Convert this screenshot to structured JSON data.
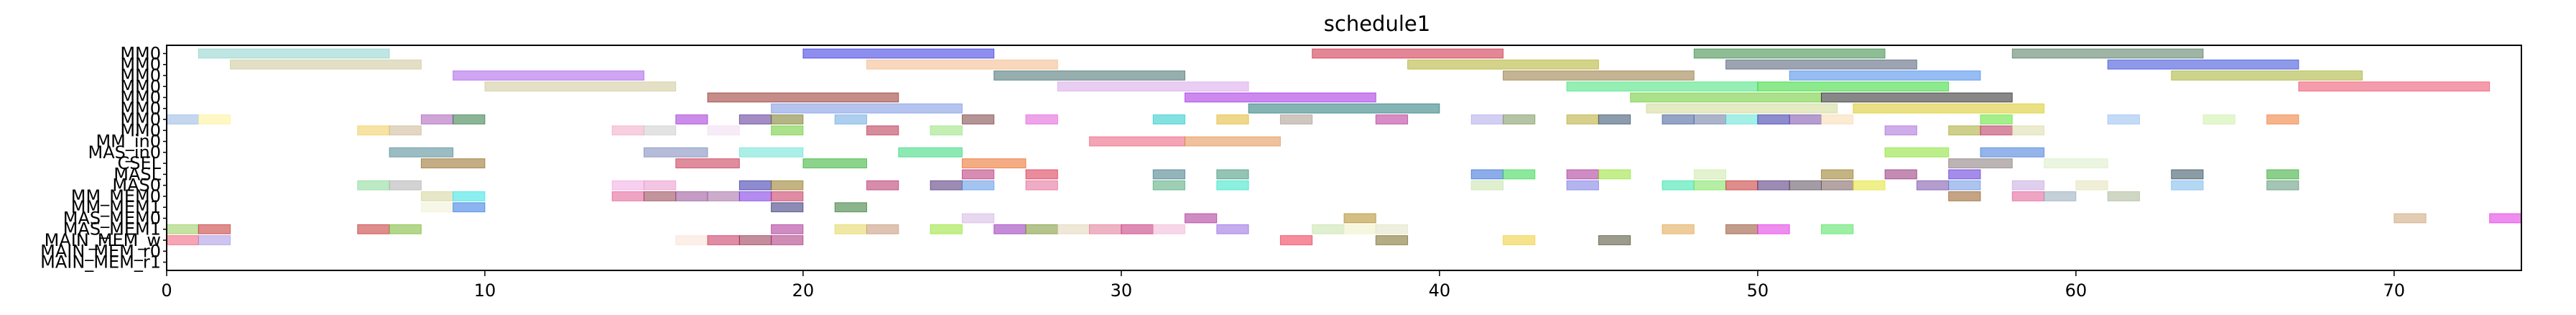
{
  "chart_data": {
    "type": "gantt",
    "title": "schedule1",
    "xlim": [
      0,
      74
    ],
    "xticks": [
      0,
      10,
      20,
      30,
      40,
      50,
      60,
      70
    ],
    "rows": [
      "MM0",
      "MM0",
      "MM0",
      "MM0",
      "MM0",
      "MM0",
      "MM0",
      "MM0",
      "MM_in0",
      "MAS_in0",
      "CSEL",
      "MASL",
      "MAS0",
      "MM_MEM0",
      "MM_MEM1",
      "MAS_MEM0",
      "MAS_MEM1",
      "MAIN_MEM_w",
      "MAIN_MEM_r0",
      "MAIN_MEM_r1"
    ],
    "bars": [
      {
        "row": 0,
        "start": 1.0,
        "end": 7.0,
        "color": "#7fcdc6"
      },
      {
        "row": 0,
        "start": 20.0,
        "end": 26.0,
        "color": "#1d1de0"
      },
      {
        "row": 0,
        "start": 36.0,
        "end": 42.0,
        "color": "#c8102e"
      },
      {
        "row": 0,
        "start": 48.0,
        "end": 54.0,
        "color": "#1e7b2c"
      },
      {
        "row": 0,
        "start": 58.0,
        "end": 64.0,
        "color": "#3e6a4b"
      },
      {
        "row": 1,
        "start": 2.0,
        "end": 8.0,
        "color": "#c7c08e"
      },
      {
        "row": 1,
        "start": 22.0,
        "end": 28.0,
        "color": "#f4b07a"
      },
      {
        "row": 1,
        "start": 39.0,
        "end": 45.0,
        "color": "#a8a816"
      },
      {
        "row": 1,
        "start": 49.0,
        "end": 55.0,
        "color": "#3a4a66"
      },
      {
        "row": 1,
        "start": 61.0,
        "end": 67.0,
        "color": "#1f34d6"
      },
      {
        "row": 2,
        "start": 9.0,
        "end": 15.0,
        "color": "#a04bea"
      },
      {
        "row": 2,
        "start": 26.0,
        "end": 32.0,
        "color": "#2f5e5e"
      },
      {
        "row": 2,
        "start": 42.0,
        "end": 48.0,
        "color": "#8a6a2a"
      },
      {
        "row": 2,
        "start": 51.0,
        "end": 57.0,
        "color": "#2e7bea"
      },
      {
        "row": 2,
        "start": 63.0,
        "end": 69.0,
        "color": "#9ea81a"
      },
      {
        "row": 3,
        "start": 10.0,
        "end": 16.0,
        "color": "#c9c28e"
      },
      {
        "row": 3,
        "start": 28.0,
        "end": 34.0,
        "color": "#d59be8"
      },
      {
        "row": 3,
        "start": 44.0,
        "end": 50.0,
        "color": "#2be06a"
      },
      {
        "row": 3,
        "start": 50.0,
        "end": 56.0,
        "color": "#1ad41a"
      },
      {
        "row": 3,
        "start": 67.0,
        "end": 73.0,
        "color": "#ea3a5a"
      },
      {
        "row": 4,
        "start": 17.0,
        "end": 23.0,
        "color": "#8b1a14"
      },
      {
        "row": 4,
        "start": 32.0,
        "end": 38.0,
        "color": "#9a12e0"
      },
      {
        "row": 4,
        "start": 46.0,
        "end": 52.0,
        "color": "#5ac41a"
      },
      {
        "row": 4,
        "start": 52.0,
        "end": 58.0,
        "color": "#101010"
      },
      {
        "row": 5,
        "start": 19.0,
        "end": 25.0,
        "color": "#6a8ae0"
      },
      {
        "row": 5,
        "start": 34.0,
        "end": 40.0,
        "color": "#0a6a6a"
      },
      {
        "row": 5,
        "start": 46.5,
        "end": 52.5,
        "color": "#c9d68a"
      },
      {
        "row": 5,
        "start": 53.0,
        "end": 59.0,
        "color": "#d6c40a"
      },
      {
        "row": 6,
        "start": 0.0,
        "end": 1.0,
        "color": "#8ab0e0"
      },
      {
        "row": 6,
        "start": 1.0,
        "end": 2.0,
        "color": "#fff08a"
      },
      {
        "row": 6,
        "start": 8.0,
        "end": 9.0,
        "color": "#a04ab0"
      },
      {
        "row": 6,
        "start": 9.0,
        "end": 10.0,
        "color": "#1a6a30"
      },
      {
        "row": 6,
        "start": 16.0,
        "end": 17.0,
        "color": "#9a1ad6"
      },
      {
        "row": 6,
        "start": 18.0,
        "end": 19.0,
        "color": "#4a1a8a"
      },
      {
        "row": 6,
        "start": 19.0,
        "end": 20.0,
        "color": "#6a6a10"
      },
      {
        "row": 6,
        "start": 21.0,
        "end": 22.0,
        "color": "#5aa0e0"
      },
      {
        "row": 6,
        "start": 25.0,
        "end": 26.0,
        "color": "#6a2a2a"
      },
      {
        "row": 6,
        "start": 27.0,
        "end": 28.0,
        "color": "#e04ad6"
      },
      {
        "row": 6,
        "start": 31.0,
        "end": 32.0,
        "color": "#0ac4c4"
      },
      {
        "row": 6,
        "start": 33.0,
        "end": 34.0,
        "color": "#e0b01a"
      },
      {
        "row": 6,
        "start": 35.0,
        "end": 36.0,
        "color": "#a09080"
      },
      {
        "row": 6,
        "start": 38.0,
        "end": 39.0,
        "color": "#b01a8a"
      },
      {
        "row": 6,
        "start": 41.0,
        "end": 42.0,
        "color": "#a8a0e8"
      },
      {
        "row": 6,
        "start": 42.0,
        "end": 43.0,
        "color": "#6a8a4a"
      },
      {
        "row": 6,
        "start": 44.0,
        "end": 45.0,
        "color": "#b0a01a"
      },
      {
        "row": 6,
        "start": 45.0,
        "end": 46.0,
        "color": "#1a3a5a"
      },
      {
        "row": 6,
        "start": 47.0,
        "end": 48.0,
        "color": "#2a4a8a"
      },
      {
        "row": 6,
        "start": 48.0,
        "end": 49.0,
        "color": "#5a6a9a"
      },
      {
        "row": 6,
        "start": 49.0,
        "end": 50.0,
        "color": "#4ae0d0"
      },
      {
        "row": 6,
        "start": 50.0,
        "end": 51.0,
        "color": "#1a1aa0"
      },
      {
        "row": 6,
        "start": 51.0,
        "end": 52.0,
        "color": "#6a3aa0"
      },
      {
        "row": 6,
        "start": 52.0,
        "end": 53.0,
        "color": "#f8d8a8"
      },
      {
        "row": 6,
        "start": 57.0,
        "end": 58.0,
        "color": "#4ae01a"
      },
      {
        "row": 6,
        "start": 61.0,
        "end": 62.0,
        "color": "#8ab8f0"
      },
      {
        "row": 6,
        "start": 64.0,
        "end": 65.0,
        "color": "#c8f0a0"
      },
      {
        "row": 6,
        "start": 66.0,
        "end": 67.0,
        "color": "#f06a1a"
      },
      {
        "row": 7,
        "start": 6.0,
        "end": 7.0,
        "color": "#f0c84a"
      },
      {
        "row": 7,
        "start": 7.0,
        "end": 8.0,
        "color": "#c8b08a"
      },
      {
        "row": 7,
        "start": 14.0,
        "end": 15.0,
        "color": "#f0a0c0"
      },
      {
        "row": 7,
        "start": 15.0,
        "end": 16.0,
        "color": "#c8c8c8"
      },
      {
        "row": 7,
        "start": 17.0,
        "end": 18.0,
        "color": "#f0d8f0"
      },
      {
        "row": 7,
        "start": 19.0,
        "end": 20.0,
        "color": "#5ac41a"
      },
      {
        "row": 7,
        "start": 22.0,
        "end": 23.0,
        "color": "#b01a3a"
      },
      {
        "row": 7,
        "start": 24.0,
        "end": 25.0,
        "color": "#8ae06a"
      },
      {
        "row": 7,
        "start": 54.0,
        "end": 55.0,
        "color": "#a05ad6"
      },
      {
        "row": 7,
        "start": 56.0,
        "end": 57.0,
        "color": "#a0a01a"
      },
      {
        "row": 7,
        "start": 57.0,
        "end": 58.0,
        "color": "#b01a4a"
      },
      {
        "row": 7,
        "start": 58.0,
        "end": 59.0,
        "color": "#d8d8a0"
      },
      {
        "row": 8,
        "start": 29.0,
        "end": 32.0,
        "color": "#ea4a6a"
      },
      {
        "row": 8,
        "start": 32.0,
        "end": 35.0,
        "color": "#e0843a"
      },
      {
        "row": 9,
        "start": 7.0,
        "end": 9.0,
        "color": "#3a7a8a"
      },
      {
        "row": 9,
        "start": 15.0,
        "end": 17.0,
        "color": "#6a7ab0"
      },
      {
        "row": 9,
        "start": 18.0,
        "end": 20.0,
        "color": "#5ae0d0"
      },
      {
        "row": 9,
        "start": 23.0,
        "end": 25.0,
        "color": "#1ad46a"
      },
      {
        "row": 9,
        "start": 54.0,
        "end": 56.0,
        "color": "#7ae01a"
      },
      {
        "row": 9,
        "start": 57.0,
        "end": 59.0,
        "color": "#2a6ad6"
      },
      {
        "row": 10,
        "start": 8.0,
        "end": 10.0,
        "color": "#8a5a0a"
      },
      {
        "row": 10,
        "start": 16.0,
        "end": 18.0,
        "color": "#c01a3a"
      },
      {
        "row": 10,
        "start": 20.0,
        "end": 22.0,
        "color": "#1aa81a"
      },
      {
        "row": 10,
        "start": 25.0,
        "end": 27.0,
        "color": "#ea5a0a"
      },
      {
        "row": 10,
        "start": 56.0,
        "end": 58.0,
        "color": "#7a6a6a"
      },
      {
        "row": 10,
        "start": 59.0,
        "end": 61.0,
        "color": "#d8ecc0"
      },
      {
        "row": 11,
        "start": 25.0,
        "end": 26.0,
        "color": "#b01a6a"
      },
      {
        "row": 11,
        "start": 27.0,
        "end": 28.0,
        "color": "#d61a3a"
      },
      {
        "row": 11,
        "start": 31.0,
        "end": 32.0,
        "color": "#2a6a7a"
      },
      {
        "row": 11,
        "start": 33.0,
        "end": 34.0,
        "color": "#2a8a6a"
      },
      {
        "row": 11,
        "start": 41.0,
        "end": 42.0,
        "color": "#1a5ad6"
      },
      {
        "row": 11,
        "start": 42.0,
        "end": 43.0,
        "color": "#1ad43a"
      },
      {
        "row": 11,
        "start": 44.0,
        "end": 45.0,
        "color": "#a01a8a"
      },
      {
        "row": 11,
        "start": 45.0,
        "end": 46.0,
        "color": "#8ae01a"
      },
      {
        "row": 11,
        "start": 48.0,
        "end": 49.0,
        "color": "#c8e8a0"
      },
      {
        "row": 11,
        "start": 52.0,
        "end": 53.0,
        "color": "#8a6a0a"
      },
      {
        "row": 11,
        "start": 54.0,
        "end": 55.0,
        "color": "#8a1a6a"
      },
      {
        "row": 11,
        "start": 56.0,
        "end": 57.0,
        "color": "#4a1ad6"
      },
      {
        "row": 11,
        "start": 63.0,
        "end": 64.0,
        "color": "#1a3a4a"
      },
      {
        "row": 11,
        "start": 66.0,
        "end": 67.0,
        "color": "#1aa01a"
      },
      {
        "row": 12,
        "start": 6.0,
        "end": 7.0,
        "color": "#7ad68a"
      },
      {
        "row": 12,
        "start": 7.0,
        "end": 8.0,
        "color": "#a8a8a8"
      },
      {
        "row": 12,
        "start": 14.0,
        "end": 15.0,
        "color": "#f0a0e0"
      },
      {
        "row": 12,
        "start": 15.0,
        "end": 16.0,
        "color": "#ea8ac8"
      },
      {
        "row": 12,
        "start": 18.0,
        "end": 19.0,
        "color": "#1a1aa0"
      },
      {
        "row": 12,
        "start": 19.0,
        "end": 20.0,
        "color": "#8a6a0a"
      },
      {
        "row": 12,
        "start": 22.0,
        "end": 23.0,
        "color": "#b01a5a"
      },
      {
        "row": 12,
        "start": 24.0,
        "end": 25.0,
        "color": "#3a1a6a"
      },
      {
        "row": 12,
        "start": 25.0,
        "end": 26.0,
        "color": "#4a8ae0"
      },
      {
        "row": 12,
        "start": 27.0,
        "end": 28.0,
        "color": "#e05a8a"
      },
      {
        "row": 12,
        "start": 31.0,
        "end": 32.0,
        "color": "#3aa06a"
      },
      {
        "row": 12,
        "start": 33.0,
        "end": 34.0,
        "color": "#1ae0c0"
      },
      {
        "row": 12,
        "start": 41.0,
        "end": 42.0,
        "color": "#c0e0a0"
      },
      {
        "row": 12,
        "start": 44.0,
        "end": 45.0,
        "color": "#6a6ae0"
      },
      {
        "row": 12,
        "start": 47.0,
        "end": 48.0,
        "color": "#1ae0a0"
      },
      {
        "row": 12,
        "start": 48.0,
        "end": 49.0,
        "color": "#6ae04a"
      },
      {
        "row": 12,
        "start": 49.0,
        "end": 50.0,
        "color": "#c01a1a"
      },
      {
        "row": 12,
        "start": 50.0,
        "end": 51.0,
        "color": "#3a1a6a"
      },
      {
        "row": 12,
        "start": 51.0,
        "end": 52.0,
        "color": "#4a3a4a"
      },
      {
        "row": 12,
        "start": 52.0,
        "end": 53.0,
        "color": "#6a4a4a"
      },
      {
        "row": 12,
        "start": 53.0,
        "end": 54.0,
        "color": "#e0e01a"
      },
      {
        "row": 12,
        "start": 55.0,
        "end": 56.0,
        "color": "#6a3aa0"
      },
      {
        "row": 12,
        "start": 56.0,
        "end": 57.0,
        "color": "#5a8ae0"
      },
      {
        "row": 12,
        "start": 58.0,
        "end": 59.0,
        "color": "#c0a0e0"
      },
      {
        "row": 12,
        "start": 60.0,
        "end": 61.0,
        "color": "#e0e0b0"
      },
      {
        "row": 12,
        "start": 63.0,
        "end": 64.0,
        "color": "#6ab0e8"
      },
      {
        "row": 12,
        "start": 66.0,
        "end": 67.0,
        "color": "#4a8a6a"
      },
      {
        "row": 13,
        "start": 8.0,
        "end": 9.0,
        "color": "#d0d090"
      },
      {
        "row": 13,
        "start": 9.0,
        "end": 10.0,
        "color": "#1ae0e0"
      },
      {
        "row": 13,
        "start": 14.0,
        "end": 15.0,
        "color": "#e04a8a"
      },
      {
        "row": 13,
        "start": 15.0,
        "end": 16.0,
        "color": "#8a2a3a"
      },
      {
        "row": 13,
        "start": 16.0,
        "end": 17.0,
        "color": "#8a3a8a"
      },
      {
        "row": 13,
        "start": 17.0,
        "end": 18.0,
        "color": "#9a5a9a"
      },
      {
        "row": 13,
        "start": 18.0,
        "end": 19.0,
        "color": "#6a1ae0"
      },
      {
        "row": 13,
        "start": 19.0,
        "end": 20.0,
        "color": "#c01a4a"
      },
      {
        "row": 13,
        "start": 56.0,
        "end": 57.0,
        "color": "#8a4a0a"
      },
      {
        "row": 13,
        "start": 58.0,
        "end": 59.0,
        "color": "#e04a8a"
      },
      {
        "row": 13,
        "start": 59.0,
        "end": 60.0,
        "color": "#8aa0b0"
      },
      {
        "row": 13,
        "start": 61.0,
        "end": 62.0,
        "color": "#a0b08a"
      },
      {
        "row": 14,
        "start": 8.0,
        "end": 9.0,
        "color": "#f0f0d0"
      },
      {
        "row": 14,
        "start": 9.0,
        "end": 10.0,
        "color": "#1a6ae0"
      },
      {
        "row": 14,
        "start": 19.0,
        "end": 20.0,
        "color": "#1a1a6a"
      },
      {
        "row": 14,
        "start": 21.0,
        "end": 22.0,
        "color": "#1a6a1a"
      },
      {
        "row": 15,
        "start": 25.0,
        "end": 26.0,
        "color": "#d0b0e0"
      },
      {
        "row": 15,
        "start": 32.0,
        "end": 33.0,
        "color": "#a01a8a"
      },
      {
        "row": 15,
        "start": 37.0,
        "end": 38.0,
        "color": "#a8800a"
      },
      {
        "row": 15,
        "start": 70.0,
        "end": 71.0,
        "color": "#c89a6a"
      },
      {
        "row": 15,
        "start": 73.0,
        "end": 74.0,
        "color": "#e01ae0"
      },
      {
        "row": 16,
        "start": 0.0,
        "end": 1.0,
        "color": "#8ac84a"
      },
      {
        "row": 16,
        "start": 1.0,
        "end": 2.0,
        "color": "#c01a1a"
      },
      {
        "row": 16,
        "start": 6.0,
        "end": 7.0,
        "color": "#c01a1a"
      },
      {
        "row": 16,
        "start": 7.0,
        "end": 8.0,
        "color": "#6ab01a"
      },
      {
        "row": 16,
        "start": 19.0,
        "end": 20.0,
        "color": "#a01a8a"
      },
      {
        "row": 16,
        "start": 21.0,
        "end": 22.0,
        "color": "#e0d04a"
      },
      {
        "row": 16,
        "start": 22.0,
        "end": 23.0,
        "color": "#c08a6a"
      },
      {
        "row": 16,
        "start": 24.0,
        "end": 25.0,
        "color": "#8ae01a"
      },
      {
        "row": 16,
        "start": 26.0,
        "end": 27.0,
        "color": "#8a1ab0"
      },
      {
        "row": 16,
        "start": 27.0,
        "end": 28.0,
        "color": "#6a8a1a"
      },
      {
        "row": 16,
        "start": 28.0,
        "end": 29.0,
        "color": "#e0d0b0"
      },
      {
        "row": 16,
        "start": 29.0,
        "end": 30.0,
        "color": "#e06a8a"
      },
      {
        "row": 16,
        "start": 30.0,
        "end": 31.0,
        "color": "#c01a6a"
      },
      {
        "row": 16,
        "start": 31.0,
        "end": 32.0,
        "color": "#f0b0d0"
      },
      {
        "row": 16,
        "start": 33.0,
        "end": 34.0,
        "color": "#8a5ae0"
      },
      {
        "row": 16,
        "start": 36.0,
        "end": 37.0,
        "color": "#c0e0a0"
      },
      {
        "row": 16,
        "start": 37.0,
        "end": 38.0,
        "color": "#f0f0c0"
      },
      {
        "row": 16,
        "start": 38.0,
        "end": 39.0,
        "color": "#e0e0c0"
      },
      {
        "row": 16,
        "start": 47.0,
        "end": 48.0,
        "color": "#e09a3a"
      },
      {
        "row": 16,
        "start": 49.0,
        "end": 50.0,
        "color": "#8a3a1a"
      },
      {
        "row": 16,
        "start": 50.0,
        "end": 51.0,
        "color": "#e01ae0"
      },
      {
        "row": 16,
        "start": 52.0,
        "end": 53.0,
        "color": "#3ae04a"
      },
      {
        "row": 17,
        "start": 0.0,
        "end": 1.0,
        "color": "#f04a6a"
      },
      {
        "row": 17,
        "start": 1.0,
        "end": 2.0,
        "color": "#a08ae0"
      },
      {
        "row": 17,
        "start": 16.0,
        "end": 17.0,
        "color": "#f8e0d0"
      },
      {
        "row": 17,
        "start": 17.0,
        "end": 18.0,
        "color": "#c01a4a"
      },
      {
        "row": 17,
        "start": 18.0,
        "end": 19.0,
        "color": "#8a1a3a"
      },
      {
        "row": 17,
        "start": 19.0,
        "end": 20.0,
        "color": "#a01a6a"
      },
      {
        "row": 17,
        "start": 35.0,
        "end": 36.0,
        "color": "#f01a3a"
      },
      {
        "row": 17,
        "start": 38.0,
        "end": 39.0,
        "color": "#6a5a0a"
      },
      {
        "row": 17,
        "start": 42.0,
        "end": 43.0,
        "color": "#f0c81a"
      },
      {
        "row": 17,
        "start": 45.0,
        "end": 46.0,
        "color": "#3a3a1a"
      }
    ]
  }
}
